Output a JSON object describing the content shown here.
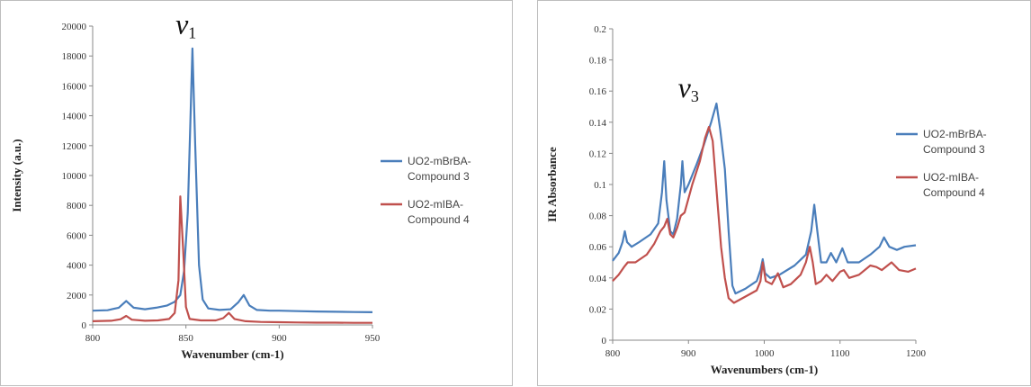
{
  "chart_data": [
    {
      "type": "line",
      "title": "",
      "xlabel": "Wavenumber (cm-1)",
      "ylabel": "Intensity (a.u.)",
      "xlim": [
        800,
        950
      ],
      "ylim": [
        0,
        20000
      ],
      "xticks": [
        800,
        850,
        900,
        950
      ],
      "yticks": [
        0,
        2000,
        4000,
        6000,
        8000,
        10000,
        12000,
        14000,
        16000,
        18000,
        20000
      ],
      "grid": false,
      "legend": "right",
      "annotation": {
        "symbol": "v",
        "sub": "1",
        "x": 850,
        "y": 19500
      },
      "series": [
        {
          "name": "UO2-mBrBA-Compound 3",
          "color": "#4a7ebb",
          "points": [
            [
              800,
              950
            ],
            [
              808,
              980
            ],
            [
              814,
              1150
            ],
            [
              818,
              1600
            ],
            [
              822,
              1150
            ],
            [
              828,
              1050
            ],
            [
              834,
              1150
            ],
            [
              840,
              1300
            ],
            [
              844,
              1550
            ],
            [
              847,
              2000
            ],
            [
              849,
              3600
            ],
            [
              851,
              7500
            ],
            [
              852.5,
              14000
            ],
            [
              853.5,
              18500
            ],
            [
              855,
              12000
            ],
            [
              857,
              4000
            ],
            [
              859,
              1700
            ],
            [
              862,
              1100
            ],
            [
              868,
              1000
            ],
            [
              874,
              1050
            ],
            [
              878,
              1500
            ],
            [
              881,
              2000
            ],
            [
              884,
              1300
            ],
            [
              888,
              1000
            ],
            [
              895,
              950
            ],
            [
              900,
              950
            ],
            [
              910,
              920
            ],
            [
              920,
              900
            ],
            [
              930,
              880
            ],
            [
              940,
              860
            ],
            [
              950,
              850
            ]
          ]
        },
        {
          "name": "UO2-mIBA-Compound 4",
          "color": "#c0504d",
          "points": [
            [
              800,
              250
            ],
            [
              810,
              280
            ],
            [
              815,
              380
            ],
            [
              818,
              600
            ],
            [
              821,
              350
            ],
            [
              828,
              280
            ],
            [
              835,
              300
            ],
            [
              841,
              400
            ],
            [
              844,
              800
            ],
            [
              846,
              3000
            ],
            [
              847,
              8600
            ],
            [
              848.5,
              5000
            ],
            [
              850,
              1200
            ],
            [
              852,
              400
            ],
            [
              858,
              300
            ],
            [
              866,
              300
            ],
            [
              870,
              450
            ],
            [
              873,
              800
            ],
            [
              876,
              400
            ],
            [
              882,
              250
            ],
            [
              890,
              200
            ],
            [
              900,
              180
            ],
            [
              910,
              160
            ],
            [
              920,
              150
            ],
            [
              930,
              150
            ],
            [
              940,
              140
            ],
            [
              950,
              140
            ]
          ]
        }
      ]
    },
    {
      "type": "line",
      "title": "",
      "xlabel": "Wavenumbers (cm-1)",
      "ylabel": "IR Absorbance",
      "xlim": [
        800,
        1200
      ],
      "ylim": [
        0,
        0.2
      ],
      "xticks": [
        800,
        900,
        1000,
        1100,
        1200
      ],
      "yticks": [
        "0",
        "0.02",
        "0.04",
        "0.06",
        "0.08",
        "0.1",
        "0.12",
        "0.14",
        "0.16",
        "0.18",
        "0.2"
      ],
      "grid": false,
      "legend": "right",
      "annotation": {
        "symbol": "v",
        "sub": "3",
        "x": 900,
        "y": 0.156
      },
      "series": [
        {
          "name": "UO2-mBrBA-Compound 3",
          "color": "#4a7ebb",
          "points": [
            [
              800,
              0.051
            ],
            [
              808,
              0.056
            ],
            [
              813,
              0.063
            ],
            [
              816,
              0.07
            ],
            [
              819,
              0.063
            ],
            [
              825,
              0.06
            ],
            [
              835,
              0.063
            ],
            [
              850,
              0.068
            ],
            [
              860,
              0.075
            ],
            [
              865,
              0.095
            ],
            [
              868,
              0.115
            ],
            [
              871,
              0.09
            ],
            [
              876,
              0.07
            ],
            [
              880,
              0.068
            ],
            [
              885,
              0.078
            ],
            [
              890,
              0.1
            ],
            [
              892,
              0.115
            ],
            [
              895,
              0.095
            ],
            [
              900,
              0.1
            ],
            [
              910,
              0.112
            ],
            [
              920,
              0.125
            ],
            [
              930,
              0.14
            ],
            [
              937,
              0.152
            ],
            [
              942,
              0.135
            ],
            [
              948,
              0.11
            ],
            [
              953,
              0.07
            ],
            [
              958,
              0.035
            ],
            [
              962,
              0.03
            ],
            [
              975,
              0.033
            ],
            [
              990,
              0.038
            ],
            [
              995,
              0.045
            ],
            [
              998,
              0.052
            ],
            [
              1001,
              0.043
            ],
            [
              1008,
              0.04
            ],
            [
              1020,
              0.042
            ],
            [
              1040,
              0.048
            ],
            [
              1055,
              0.055
            ],
            [
              1062,
              0.07
            ],
            [
              1066,
              0.087
            ],
            [
              1070,
              0.07
            ],
            [
              1075,
              0.05
            ],
            [
              1082,
              0.05
            ],
            [
              1088,
              0.056
            ],
            [
              1095,
              0.05
            ],
            [
              1103,
              0.059
            ],
            [
              1110,
              0.05
            ],
            [
              1125,
              0.05
            ],
            [
              1140,
              0.055
            ],
            [
              1152,
              0.06
            ],
            [
              1158,
              0.066
            ],
            [
              1165,
              0.06
            ],
            [
              1175,
              0.058
            ],
            [
              1185,
              0.06
            ],
            [
              1200,
              0.061
            ]
          ]
        },
        {
          "name": "UO2-mIBA-Compound 4",
          "color": "#c0504d",
          "points": [
            [
              800,
              0.038
            ],
            [
              808,
              0.042
            ],
            [
              815,
              0.047
            ],
            [
              820,
              0.05
            ],
            [
              830,
              0.05
            ],
            [
              845,
              0.055
            ],
            [
              855,
              0.062
            ],
            [
              863,
              0.07
            ],
            [
              868,
              0.073
            ],
            [
              872,
              0.078
            ],
            [
              876,
              0.068
            ],
            [
              880,
              0.066
            ],
            [
              885,
              0.072
            ],
            [
              890,
              0.08
            ],
            [
              895,
              0.082
            ],
            [
              905,
              0.1
            ],
            [
              915,
              0.115
            ],
            [
              922,
              0.13
            ],
            [
              927,
              0.137
            ],
            [
              932,
              0.128
            ],
            [
              938,
              0.09
            ],
            [
              943,
              0.06
            ],
            [
              948,
              0.04
            ],
            [
              953,
              0.027
            ],
            [
              960,
              0.024
            ],
            [
              975,
              0.028
            ],
            [
              990,
              0.032
            ],
            [
              995,
              0.038
            ],
            [
              998,
              0.05
            ],
            [
              1002,
              0.038
            ],
            [
              1010,
              0.036
            ],
            [
              1018,
              0.043
            ],
            [
              1025,
              0.034
            ],
            [
              1035,
              0.036
            ],
            [
              1048,
              0.042
            ],
            [
              1055,
              0.05
            ],
            [
              1060,
              0.06
            ],
            [
              1064,
              0.05
            ],
            [
              1068,
              0.036
            ],
            [
              1075,
              0.038
            ],
            [
              1082,
              0.042
            ],
            [
              1090,
              0.038
            ],
            [
              1100,
              0.044
            ],
            [
              1105,
              0.045
            ],
            [
              1112,
              0.04
            ],
            [
              1125,
              0.042
            ],
            [
              1140,
              0.048
            ],
            [
              1148,
              0.047
            ],
            [
              1155,
              0.045
            ],
            [
              1168,
              0.05
            ],
            [
              1178,
              0.045
            ],
            [
              1190,
              0.044
            ],
            [
              1200,
              0.046
            ]
          ]
        }
      ]
    }
  ]
}
